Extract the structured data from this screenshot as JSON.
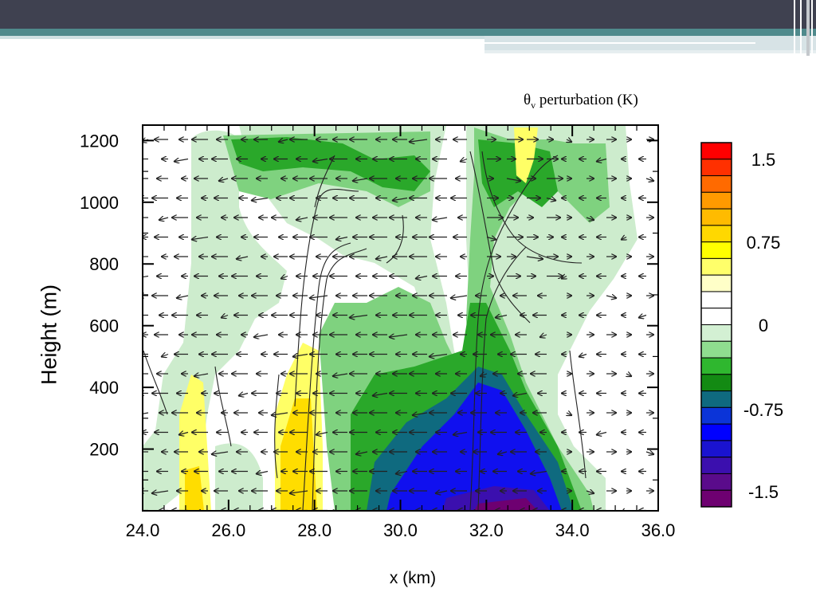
{
  "chart_data": {
    "type": "heatmap",
    "title": "θv perturbation (K)",
    "title_main": "θ",
    "title_sub": "v",
    "title_rest": " perturbation (K)",
    "xlabel": "x (km)",
    "ylabel": "Height (m)",
    "xlim": [
      24.0,
      36.0
    ],
    "ylim": [
      0,
      1250
    ],
    "x_ticks": [
      "24.0",
      "26.0",
      "28.0",
      "30.0",
      "32.0",
      "34.0",
      "36.0"
    ],
    "y_ticks": [
      "200",
      "400",
      "600",
      "800",
      "1000",
      "1200"
    ],
    "colorbar": {
      "labels": [
        "1.5",
        "0.75",
        "0",
        "-0.75",
        "-1.5"
      ],
      "colors": [
        "#ff0000",
        "#ff3000",
        "#ff6a00",
        "#ff9a00",
        "#ffbb00",
        "#ffd800",
        "#ffff00",
        "#ffff6a",
        "#ffffc8",
        "#ffffff",
        "#ffffff",
        "#d3f0d3",
        "#8fdd8f",
        "#2fb72f",
        "#138a13",
        "#0f6a7f",
        "#0b34d8",
        "#0000ff",
        "#1a13d0",
        "#3b0fae",
        "#5a0b8b",
        "#6e0071"
      ]
    },
    "regions": [
      {
        "name": "light-green",
        "color": "#cdeccd"
      },
      {
        "name": "green",
        "color": "#7fd27f"
      },
      {
        "name": "dark-green",
        "color": "#2aa82a"
      },
      {
        "name": "blue",
        "color": "#1010ef"
      },
      {
        "name": "yellow",
        "color": "#ffff33"
      }
    ]
  }
}
